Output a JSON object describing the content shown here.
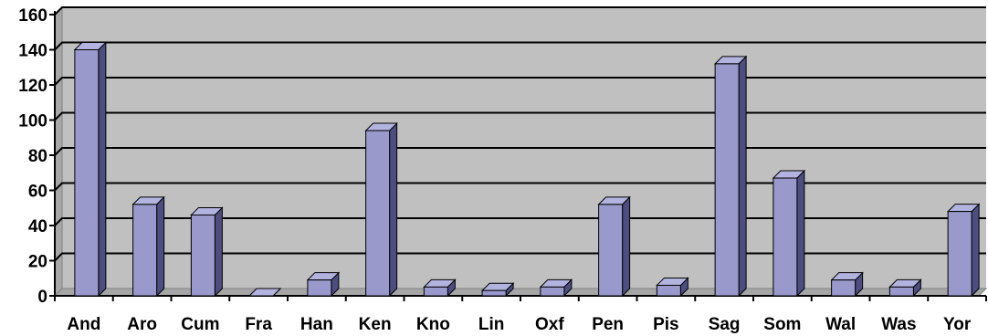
{
  "chart_data": {
    "type": "bar",
    "categories": [
      "And",
      "Aro",
      "Cum",
      "Fra",
      "Han",
      "Ken",
      "Kno",
      "Lin",
      "Oxf",
      "Pen",
      "Pis",
      "Sag",
      "Som",
      "Wal",
      "Was",
      "Yor"
    ],
    "values": [
      140,
      52,
      46,
      0,
      9,
      94,
      5,
      3,
      5,
      52,
      6,
      132,
      67,
      9,
      5,
      48
    ],
    "yticks": [
      "0",
      "20",
      "40",
      "60",
      "80",
      "100",
      "120",
      "140",
      "160"
    ],
    "ylim": [
      0,
      160
    ],
    "grid": true,
    "title": "",
    "xlabel": "",
    "ylabel": "",
    "colors": {
      "bar_front": "#9999cc",
      "bar_side": "#4d4d80",
      "bar_top": "#b3b3e0",
      "plot_wall": "#c0c0c0",
      "floor": "#a6a6a6",
      "gridline": "#000000"
    }
  }
}
